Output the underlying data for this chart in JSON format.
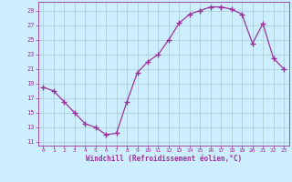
{
  "x": [
    0,
    1,
    2,
    3,
    4,
    5,
    6,
    7,
    8,
    9,
    10,
    11,
    12,
    13,
    14,
    15,
    16,
    17,
    18,
    19,
    20,
    21,
    22,
    23
  ],
  "y": [
    18.5,
    18.0,
    16.5,
    15.0,
    13.5,
    13.0,
    12.0,
    12.2,
    16.5,
    20.5,
    22.0,
    23.0,
    25.0,
    27.3,
    28.5,
    29.0,
    29.5,
    29.5,
    29.2,
    28.5,
    24.5,
    27.2,
    22.5,
    21.0
  ],
  "xlim": [
    -0.5,
    23.5
  ],
  "ylim": [
    10.5,
    30.2
  ],
  "yticks": [
    11,
    13,
    15,
    17,
    19,
    21,
    23,
    25,
    27,
    29
  ],
  "xticks": [
    0,
    1,
    2,
    3,
    4,
    5,
    6,
    7,
    8,
    9,
    10,
    11,
    12,
    13,
    14,
    15,
    16,
    17,
    18,
    19,
    20,
    21,
    22,
    23
  ],
  "xlabel": "Windchill (Refroidissement éolien,°C)",
  "line_color": "#993399",
  "marker": "+",
  "bg_color": "#cceeff",
  "grid_color": "#aacccc",
  "tick_color": "#993399",
  "label_color": "#993399",
  "font": "monospace"
}
